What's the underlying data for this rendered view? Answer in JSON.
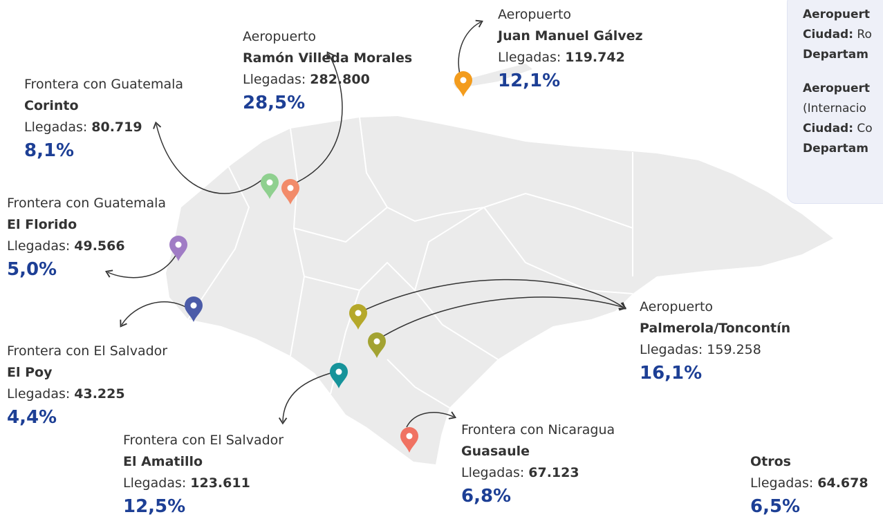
{
  "locations": [
    {
      "type": "Aeropuerto",
      "name": "Ramón Villeda Morales",
      "label": "Llegadas:",
      "value": "282.800",
      "percent": "28,5%"
    },
    {
      "type": "Aeropuerto",
      "name": "Juan Manuel Gálvez",
      "label": "Llegadas:",
      "value": "119.742",
      "percent": "12,1%"
    },
    {
      "type": "Frontera con Guatemala",
      "name": "Corinto",
      "label": "Llegadas:",
      "value": "80.719",
      "percent": "8,1%"
    },
    {
      "type": "Frontera con Guatemala",
      "name": "El Florido",
      "label": "Llegadas:",
      "value": "49.566",
      "percent": "5,0%"
    },
    {
      "type": "Frontera con El Salvador",
      "name": "El Poy",
      "label": "Llegadas:",
      "value": "43.225",
      "percent": "4,4%"
    },
    {
      "type": "Frontera con El Salvador",
      "name": "El Amatillo",
      "label": "Llegadas:",
      "value": "123.611",
      "percent": "12,5%"
    },
    {
      "type": "Frontera con Nicaragua",
      "name": "Guasaule",
      "label": "Llegadas:",
      "value": "67.123",
      "percent": "6,8%"
    },
    {
      "type": "Aeropuerto",
      "name": "Palmerola/Toncontín",
      "label": "Llegadas:",
      "value": "159.258",
      "percent": "16,1%"
    },
    {
      "name": "Otros",
      "label": "Llegadas:",
      "value": "64.678",
      "percent": "6,5%"
    }
  ],
  "panel": [
    {
      "title": "Aeropuert",
      "city_label": "Ciudad:",
      "city": "Ro",
      "department": "Departam"
    },
    {
      "title": "Aeropuert",
      "note": "(Internacio",
      "city_label": "Ciudad:",
      "city": "Co",
      "department": "Departam"
    }
  ]
}
